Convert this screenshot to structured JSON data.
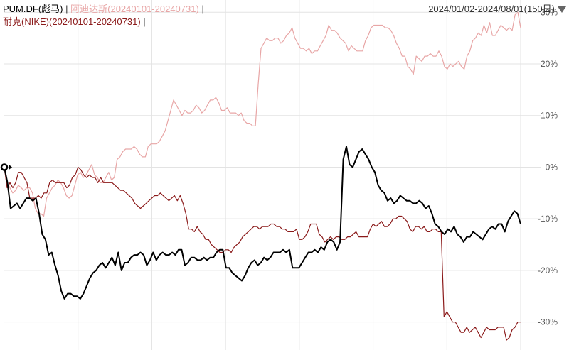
{
  "legend": {
    "series1": "PUM.DF(彪马)",
    "series2": "阿迪达斯(20240101-20240731)",
    "series3": "耐克(NIKE)(20240101-20240731)",
    "sep": "|"
  },
  "range": {
    "label": "2024/01/02-2024/08/01(150日)"
  },
  "colors": {
    "puma": "#000000",
    "adidas": "#e8a6a6",
    "nike": "#8b1a1a",
    "grid": "#e3e3e3"
  },
  "chart_data": {
    "type": "line",
    "y_unit": "%",
    "ylim": [
      -35,
      31
    ],
    "y_ticks": [
      30,
      20,
      10,
      0,
      -10,
      -20,
      -30
    ],
    "y_tick_labels": [
      "30%",
      "20%",
      "10%",
      "0%",
      "-10%",
      "-20%",
      "-30%"
    ],
    "x_range": [
      1,
      150
    ],
    "grid": true,
    "series": [
      {
        "name": "PUM.DF(彪马)",
        "key": "puma",
        "values": [
          0,
          -3,
          -8,
          -7.5,
          -7,
          -8,
          -7,
          -6,
          -6,
          -6.5,
          -6,
          -9,
          -13,
          -14,
          -17,
          -16.5,
          -19,
          -21,
          -24,
          -25.5,
          -24.5,
          -24.5,
          -25,
          -25,
          -25.5,
          -24.5,
          -23,
          -21.5,
          -20.5,
          -20,
          -19,
          -18.5,
          -19.5,
          -18.5,
          -17.5,
          -19,
          -16.5,
          -20,
          -18.5,
          -18.5,
          -17.5,
          -17,
          -17,
          -16.5,
          -17,
          -19,
          -18,
          -16.5,
          -18,
          -17,
          -16.5,
          -17,
          -17,
          -16.5,
          -17,
          -16,
          -16,
          -19,
          -18.5,
          -17.5,
          -17.5,
          -18,
          -18,
          -17.5,
          -18,
          -17.5,
          -17.5,
          -16.5,
          -16,
          -16,
          -19.5,
          -19.5,
          -20.5,
          -21,
          -21.5,
          -22,
          -21,
          -19.5,
          -18.5,
          -18,
          -19,
          -18.5,
          -17.5,
          -18,
          -17.5,
          -16.5,
          -16.5,
          -16.5,
          -16,
          -16.5,
          -16,
          -19.5,
          -19.5,
          -19.5,
          -18.5,
          -17.5,
          -16.5,
          -16.5,
          -16,
          -16.5,
          -15.5,
          -16,
          -14.5,
          -14,
          -14.5,
          -16,
          -14.5,
          1.5,
          4,
          0.5,
          0,
          1.5,
          3,
          3.5,
          2.5,
          1.5,
          0,
          -1,
          -3.5,
          -4.5,
          -5,
          -6.5,
          -6,
          -7,
          -6.5,
          -5.5,
          -6,
          -6.5,
          -6.5,
          -7,
          -7,
          -6.5,
          -7,
          -8,
          -7.5,
          -9,
          -11,
          -11.5,
          -12.5,
          -13,
          -12,
          -12.5,
          -11.5,
          -13,
          -13.5,
          -14.5,
          -13.5,
          -13.5,
          -12.5,
          -13,
          -13.5,
          -14,
          -13,
          -12,
          -11.5,
          -12,
          -11,
          -11,
          -12.5,
          -10.5,
          -9.5,
          -8.5,
          -9,
          -11
        ]
      },
      {
        "name": "阿迪达斯(20240101-20240731)",
        "key": "adidas",
        "values": [
          0,
          -3,
          -4,
          -5,
          -4.5,
          -3.5,
          -4,
          -4.5,
          -4,
          -4,
          -5,
          -8,
          -9,
          -9,
          -9.5,
          -6,
          -5,
          -4,
          -3.5,
          -2.5,
          -3,
          -4,
          -5.5,
          -6,
          -5.5,
          -3.5,
          -1.5,
          -1,
          -2,
          -1.5,
          -0.5,
          0.5,
          -1.5,
          -2,
          -3,
          -3,
          -2,
          -1,
          -2.5,
          -2,
          1.5,
          2,
          3,
          3.5,
          3.5,
          3.5,
          4,
          3.5,
          2.5,
          2,
          2,
          4,
          4.5,
          4.5,
          4.5,
          5,
          6,
          7,
          9,
          11,
          13,
          12,
          11,
          10,
          11,
          10.5,
          10.5,
          11,
          12,
          11.5,
          10.5,
          11,
          12,
          13,
          13,
          13.5,
          12.5,
          11,
          11,
          11.5,
          10.5,
          10.5,
          10.5,
          10,
          10.5,
          9,
          8.5,
          8.5,
          8,
          8,
          16,
          23,
          24,
          25,
          24.5,
          24.5,
          25,
          25,
          24,
          24.5,
          25.5,
          26,
          27,
          25,
          24,
          23,
          23,
          22.5,
          23,
          22,
          22.5,
          22.5,
          23.5,
          24.5,
          25.5,
          27.5,
          26.5,
          26.5,
          26,
          25,
          24.5,
          24,
          22.5,
          23.5,
          23,
          22.5,
          22.5,
          22.5,
          24.5,
          25.5,
          27,
          27.5,
          27.5,
          27.5,
          27.5,
          27,
          27,
          26.5,
          25.5,
          24,
          23,
          21.5,
          21.5,
          19.5,
          19,
          18,
          21.5,
          21,
          20.5,
          21.5,
          21.5,
          22,
          21.5,
          21.5,
          22.5,
          21.5,
          19.5,
          19,
          20,
          19.5,
          20,
          20.5,
          19.5,
          19,
          21.5,
          22.5,
          24.5,
          25,
          26,
          25.5,
          27.5,
          26,
          28,
          25.5,
          25.5,
          26.5,
          27.5,
          27,
          26.5,
          27,
          26.5,
          29.5,
          30,
          27
        ]
      },
      {
        "name": "耐克(NIKE)(20240101-20240731)",
        "key": "nike",
        "values": [
          0,
          -4,
          -3,
          -4,
          -3,
          -1,
          -1,
          -2,
          -3,
          -6,
          -6,
          -6,
          -5.5,
          -6,
          -5,
          -5,
          -3,
          -2.5,
          -3,
          -3,
          -3,
          -3,
          -4,
          -3.5,
          -2,
          -1.5,
          0,
          -0.5,
          -1.5,
          -2,
          -1.5,
          -2,
          -2,
          -3,
          -2,
          -3,
          -3,
          -3,
          -3,
          -3.5,
          -4,
          -4.5,
          -4.5,
          -5,
          -5.5,
          -6,
          -7,
          -7.5,
          -8,
          -7.5,
          -7,
          -6.5,
          -6,
          -5.5,
          -5.5,
          -5,
          -5.5,
          -6,
          -6.5,
          -6,
          -5.5,
          -6.5,
          -5.5,
          -7,
          -9,
          -12,
          -12,
          -12.5,
          -11.5,
          -12.5,
          -13,
          -14,
          -14,
          -15,
          -15.5,
          -16,
          -16.5,
          -16.5,
          -16,
          -16,
          -16.5,
          -15.5,
          -15,
          -14.5,
          -13.5,
          -13,
          -12.5,
          -12,
          -11.5,
          -11.5,
          -12,
          -11.5,
          -11.5,
          -11.5,
          -11,
          -11,
          -11.5,
          -11.5,
          -12,
          -12,
          -12.5,
          -12.5,
          -12.5,
          -12,
          -14,
          -14,
          -13.5,
          -12.5,
          -11,
          -11,
          -11,
          -13,
          -13.5,
          -14.5,
          -14,
          -13.5,
          -14,
          -13.5,
          -13.5,
          -14,
          -14,
          -13.5,
          -13.5,
          -13,
          -12.5,
          -13.5,
          -13.5,
          -13.5,
          -13.5,
          -12,
          -11,
          -11.5,
          -11,
          -10.5,
          -11.5,
          -11.5,
          -11,
          -10,
          -10,
          -9.5,
          -9.5,
          -10,
          -10.5,
          -12,
          -12.5,
          -11.5,
          -11.5,
          -12,
          -11.5,
          -12.5,
          -12.5,
          -12,
          -12,
          -12.5,
          -12.5,
          -29,
          -28,
          -29,
          -30,
          -30,
          -31,
          -32,
          -32,
          -31,
          -32,
          -31.5,
          -31,
          -32,
          -33,
          -32,
          -31,
          -31.5,
          -31.5,
          -31.5,
          -31,
          -31,
          -31,
          -33.5,
          -33,
          -31.5,
          -31,
          -30,
          -30
        ]
      }
    ]
  }
}
